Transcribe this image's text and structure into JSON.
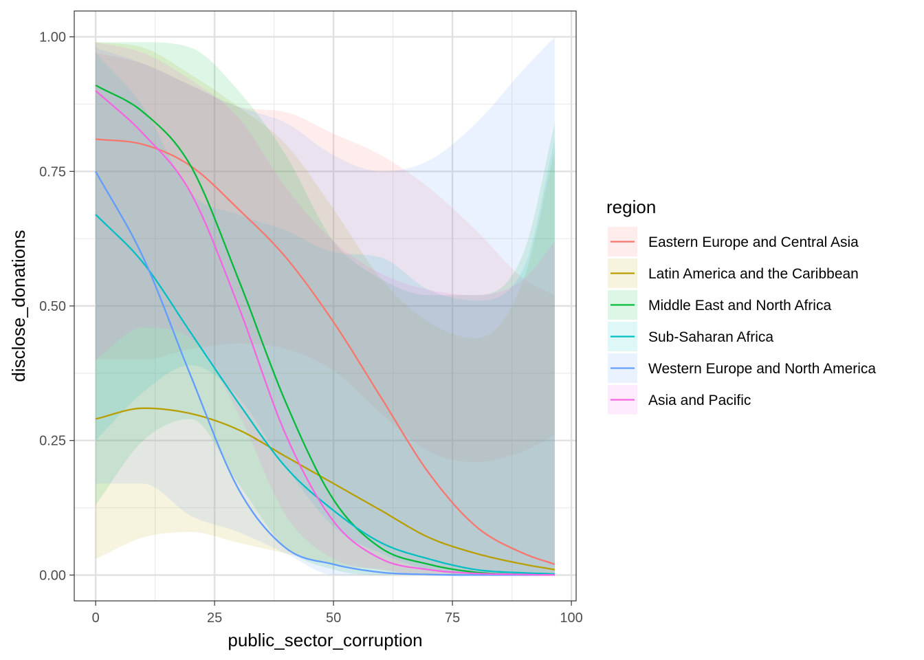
{
  "chart_data": {
    "type": "line",
    "xlabel": "public_sector_corruption",
    "ylabel": "disclose_donations",
    "xlim": [
      -4.5,
      101
    ],
    "ylim": [
      -0.048,
      1.048
    ],
    "x_ticks": [
      0,
      25,
      50,
      75,
      100
    ],
    "x_tick_labels": [
      "0",
      "25",
      "50",
      "75",
      "100"
    ],
    "y_ticks": [
      0,
      0.25,
      0.5,
      0.75,
      1.0
    ],
    "y_tick_labels": [
      "0.00",
      "0.25",
      "0.50",
      "0.75",
      "1.00"
    ],
    "grid": true,
    "theme": "bw",
    "legend": {
      "title": "region",
      "position": "right"
    },
    "x": [
      0,
      10,
      20,
      30,
      40,
      50,
      60,
      70,
      80,
      90,
      96.5
    ],
    "series": [
      {
        "name": "Eastern Europe and Central Asia",
        "color": "#F8766D",
        "values": [
          0.81,
          0.8,
          0.76,
          0.68,
          0.59,
          0.47,
          0.33,
          0.19,
          0.09,
          0.04,
          0.02
        ],
        "lower": [
          0.4,
          0.4,
          0.42,
          0.43,
          0.42,
          0.38,
          0.3,
          0.23,
          0.21,
          0.23,
          0.26
        ],
        "upper": [
          0.97,
          0.95,
          0.91,
          0.87,
          0.86,
          0.82,
          0.78,
          0.72,
          0.64,
          0.55,
          0.52
        ]
      },
      {
        "name": "Latin America and the Caribbean",
        "color": "#B79F00",
        "values": [
          0.29,
          0.31,
          0.3,
          0.27,
          0.22,
          0.17,
          0.12,
          0.07,
          0.04,
          0.02,
          0.01
        ],
        "lower": [
          0.03,
          0.07,
          0.08,
          0.06,
          0.04,
          0.02,
          0.01,
          0.0,
          0.0,
          0.0,
          0.0
        ],
        "upper": [
          0.99,
          0.98,
          0.93,
          0.87,
          0.8,
          0.68,
          0.55,
          0.47,
          0.44,
          0.55,
          0.79
        ]
      },
      {
        "name": "Middle East and North Africa",
        "color": "#00BA38",
        "values": [
          0.91,
          0.86,
          0.76,
          0.55,
          0.32,
          0.14,
          0.05,
          0.02,
          0.005,
          0.001,
          0.0
        ],
        "lower": [
          0.13,
          0.25,
          0.29,
          0.17,
          0.05,
          0.01,
          0.0,
          0.0,
          0.0,
          0.0,
          0.0
        ],
        "upper": [
          0.99,
          0.99,
          0.98,
          0.9,
          0.78,
          0.62,
          0.55,
          0.52,
          0.52,
          0.6,
          0.84
        ]
      },
      {
        "name": "Sub-Saharan Africa",
        "color": "#00BFC4",
        "values": [
          0.67,
          0.58,
          0.45,
          0.32,
          0.2,
          0.12,
          0.06,
          0.03,
          0.01,
          0.004,
          0.002
        ],
        "lower": [
          0.25,
          0.34,
          0.39,
          0.33,
          0.2,
          0.09,
          0.04,
          0.01,
          0.0,
          0.0,
          0.0
        ],
        "upper": [
          0.97,
          0.87,
          0.71,
          0.67,
          0.64,
          0.6,
          0.59,
          0.53,
          0.51,
          0.57,
          0.81
        ]
      },
      {
        "name": "Western Europe and North America",
        "color": "#619CFF",
        "values": [
          0.75,
          0.59,
          0.37,
          0.16,
          0.05,
          0.02,
          0.005,
          0.001,
          0.0,
          0.0,
          0.0
        ],
        "lower": [
          0.17,
          0.17,
          0.11,
          0.08,
          0.04,
          0.0,
          0.0,
          0.0,
          0.0,
          0.0,
          0.0
        ],
        "upper": [
          0.98,
          0.95,
          0.91,
          0.87,
          0.84,
          0.78,
          0.75,
          0.77,
          0.84,
          0.94,
          1.0
        ]
      },
      {
        "name": "Asia and Pacific",
        "color": "#F564E3",
        "values": [
          0.9,
          0.82,
          0.71,
          0.5,
          0.26,
          0.1,
          0.03,
          0.01,
          0.003,
          0.001,
          0.0
        ],
        "lower": [
          0.4,
          0.46,
          0.44,
          0.3,
          0.11,
          0.03,
          0.01,
          0.0,
          0.0,
          0.0,
          0.0
        ],
        "upper": [
          0.99,
          0.97,
          0.92,
          0.85,
          0.72,
          0.62,
          0.56,
          0.53,
          0.52,
          0.55,
          0.62
        ]
      }
    ]
  }
}
